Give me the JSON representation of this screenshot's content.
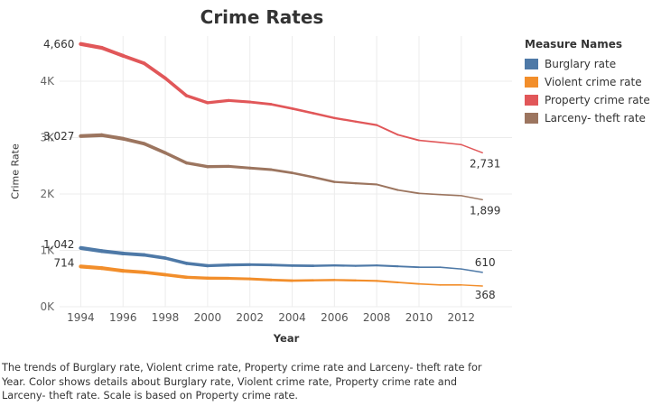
{
  "chart_data": {
    "type": "line",
    "title": "Crime Rates",
    "xlabel": "Year",
    "ylabel": "Crime Rate",
    "x": [
      1994,
      1995,
      1996,
      1997,
      1998,
      1999,
      2000,
      2001,
      2002,
      2003,
      2004,
      2005,
      2006,
      2007,
      2008,
      2009,
      2010,
      2011,
      2012,
      2013
    ],
    "xticks": [
      "1994",
      "1996",
      "1998",
      "2000",
      "2002",
      "2004",
      "2006",
      "2008",
      "2010",
      "2012"
    ],
    "yticks": [
      {
        "value": 0,
        "label": "0K"
      },
      {
        "value": 1000,
        "label": "1K"
      },
      {
        "value": 2000,
        "label": "2K"
      },
      {
        "value": 3000,
        "label": "3K"
      },
      {
        "value": 4000,
        "label": "4K"
      }
    ],
    "xlim": [
      1993,
      2014.4
    ],
    "ylim": [
      0,
      4800
    ],
    "grid": true,
    "legend_position": "right",
    "legend_title": "Measure Names",
    "series": [
      {
        "name": "Burglary rate",
        "color": "#4e79a7",
        "values": [
          1042,
          987,
          945,
          919,
          863,
          770,
          728,
          741,
          747,
          741,
          730,
          726,
          733,
          726,
          733,
          717,
          701,
          701,
          670,
          610
        ],
        "first_label": "1,042",
        "last_label": "610"
      },
      {
        "name": "Violent crime rate",
        "color": "#f28e2b",
        "values": [
          714,
          685,
          637,
          611,
          568,
          523,
          507,
          504,
          494,
          476,
          463,
          469,
          474,
          467,
          459,
          432,
          405,
          387,
          387,
          368
        ],
        "first_label": "714",
        "last_label": "368"
      },
      {
        "name": "Property crime rate",
        "color": "#e15759",
        "values": [
          4660,
          4591,
          4451,
          4317,
          4053,
          3744,
          3618,
          3658,
          3631,
          3591,
          3515,
          3432,
          3347,
          3284,
          3222,
          3050,
          2951,
          2915,
          2875,
          2731
        ],
        "first_label": "4,660",
        "last_label": "2,731"
      },
      {
        "name": "Larceny- theft rate",
        "color": "#9c755f",
        "values": [
          3027,
          3043,
          2980,
          2892,
          2729,
          2551,
          2485,
          2490,
          2460,
          2432,
          2374,
          2298,
          2214,
          2190,
          2169,
          2070,
          2011,
          1989,
          1970,
          1899
        ],
        "first_label": "3,027",
        "last_label": "1,899"
      }
    ]
  },
  "caption": [
    "The trends of Burglary rate, Violent crime rate, Property crime rate and Larceny- theft rate for",
    "Year.  Color shows details about Burglary rate, Violent crime rate, Property crime rate and",
    "Larceny- theft rate.  Scale is based on Property crime rate."
  ]
}
